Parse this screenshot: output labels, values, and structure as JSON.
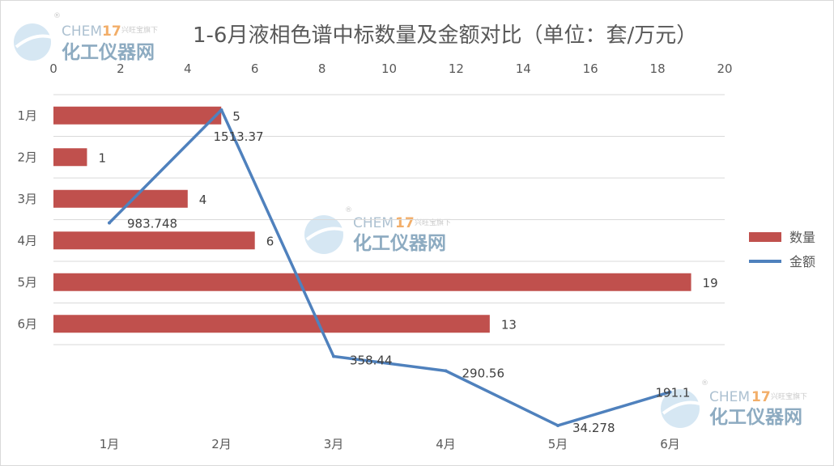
{
  "chart_data": {
    "type": "bar+line",
    "title": "1-6月液相色谱中标数量及金额对比（单位：套/万元）",
    "categories": [
      "1月",
      "2月",
      "3月",
      "4月",
      "5月",
      "6月"
    ],
    "series": [
      {
        "name": "数量",
        "type": "bar",
        "orientation": "horizontal",
        "color": "#c0504d",
        "values": [
          5,
          1,
          4,
          6,
          19,
          13
        ]
      },
      {
        "name": "金额",
        "type": "line",
        "color": "#4f81bd",
        "values": [
          983.748,
          1513.37,
          358.44,
          290.56,
          34.278,
          191.1
        ]
      }
    ],
    "bar_axis": {
      "min": 0,
      "max": 20,
      "step": 2,
      "position": "top",
      "ticks": [
        "0",
        "2",
        "4",
        "6",
        "8",
        "10",
        "12",
        "14",
        "16",
        "18",
        "20"
      ]
    },
    "line_axis": {
      "visible": false
    },
    "value_labels": {
      "bars": [
        "5",
        "1",
        "4",
        "6",
        "19",
        "13"
      ],
      "line": [
        "983.748",
        "1513.37",
        "358.44",
        "290.56",
        "34.278",
        "191.1"
      ]
    },
    "grid": true,
    "legend": {
      "position": "right",
      "entries": [
        "数量",
        "金额"
      ]
    }
  },
  "watermark": {
    "brand_en": "CHEM",
    "brand_num": "17",
    "brand_tag": "兴旺宝旗下",
    "brand_cn": "化工仪器网",
    "registered": "®"
  }
}
